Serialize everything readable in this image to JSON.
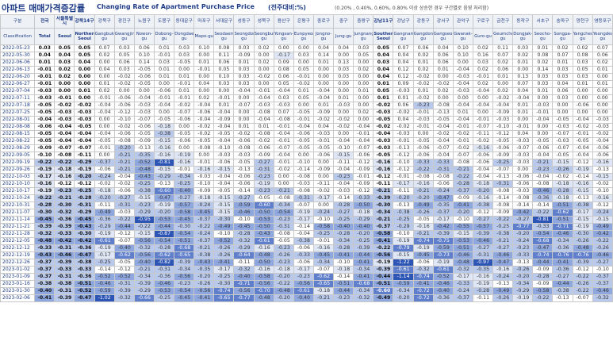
{
  "header": {
    "title_kr": "아파트 매매가격증감률",
    "title_en": "Changing Rate of Apartment Purchase Price",
    "unit": "(전주대비:%)",
    "legend_note": "(0.20% , 0.40%, 0.60%, 0.80% 이상 상승한 경우 구간별로 음영 처리함)"
  },
  "columns": [
    {
      "kr": "구분",
      "en": "Classification"
    },
    {
      "kr": "전국",
      "en": "Total"
    },
    {
      "kr": "서울특별시",
      "en": "Seoul"
    },
    {
      "kr": "강북14구",
      "en": "Northern Seoul"
    },
    {
      "kr": "강북구",
      "en": "Gangbuk-gu"
    },
    {
      "kr": "광진구",
      "en": "Gwangjin-gu"
    },
    {
      "kr": "노원구",
      "en": "Nowon-gu"
    },
    {
      "kr": "도봉구",
      "en": "Dobong-gu"
    },
    {
      "kr": "동대문구",
      "en": "Dongdaemun-gu"
    },
    {
      "kr": "마포구",
      "en": "Mapo-gu"
    },
    {
      "kr": "서대문구",
      "en": "Seodaemun-gu"
    },
    {
      "kr": "성동구",
      "en": "Seongdong-gu"
    },
    {
      "kr": "성북구",
      "en": "Seongbuk-gu"
    },
    {
      "kr": "용산구",
      "en": "Yongsan-gu"
    },
    {
      "kr": "은평구",
      "en": "Eunpyeong-gu"
    },
    {
      "kr": "종로구",
      "en": "Jongno-gu"
    },
    {
      "kr": "중구",
      "en": "Jung-gu"
    },
    {
      "kr": "중랑구",
      "en": "Jungnang-gu"
    },
    {
      "kr": "강남11구",
      "en": "Southern Seoul"
    },
    {
      "kr": "강남구",
      "en": "Gangnam-gu"
    },
    {
      "kr": "강동구",
      "en": "Gangdong-gu"
    },
    {
      "kr": "강서구",
      "en": "Gangseo-gu"
    },
    {
      "kr": "관악구",
      "en": "Gwanak-gu"
    },
    {
      "kr": "구로구",
      "en": "Guro-gu"
    },
    {
      "kr": "금천구",
      "en": "Geumcheon-gu"
    },
    {
      "kr": "동작구",
      "en": "Dongjak-gu"
    },
    {
      "kr": "서초구",
      "en": "Seocho-gu"
    },
    {
      "kr": "송파구",
      "en": "Songpa-gu"
    },
    {
      "kr": "양천구",
      "en": "Yangcheon-gu"
    },
    {
      "kr": "영등포구",
      "en": "Yeongdeungpo-gu"
    }
  ],
  "rows": [
    [
      "2022-05-23",
      "0.03",
      "0.05",
      "0.05",
      "0.07",
      "0.03",
      "0.06",
      "0.01",
      "0.03",
      "0.10",
      "0.08",
      "0.03",
      "0.02",
      "0.00",
      "0.00",
      "0.04",
      "0.04",
      "0.03",
      "0.05",
      "0.07",
      "0.06",
      "0.04",
      "0.10",
      "0.02",
      "0.11",
      "0.03",
      "0.01",
      "0.02",
      "0.02",
      "0.07"
    ],
    [
      "2022-05-30",
      "0.04",
      "0.04",
      "0.05",
      "0.02",
      "0.05",
      "0.10",
      "-0.01",
      "0.03",
      "0.00",
      "0.11",
      "-0.09",
      "0.00",
      "-0.17",
      "0.03",
      "0.14",
      "0.00",
      "0.05",
      "0.04",
      "0.04",
      "0.02",
      "0.06",
      "0.10",
      "0.16",
      "0.07",
      "0.02",
      "0.08",
      "0.07",
      "0.08",
      "0.06"
    ],
    [
      "2022-06-06",
      "0.01",
      "0.03",
      "0.04",
      "0.00",
      "0.06",
      "0.14",
      "0.03",
      "-0.05",
      "0.01",
      "0.06",
      "0.01",
      "0.02",
      "0.09",
      "0.00",
      "0.01",
      "0.13",
      "0.00",
      "0.03",
      "0.04",
      "0.01",
      "0.06",
      "0.00",
      "0.03",
      "0.02",
      "0.01",
      "0.02",
      "0.01",
      "0.03",
      "0.02"
    ],
    [
      "2022-06-13",
      "-0.01",
      "0.02",
      "0.00",
      "0.04",
      "0.03",
      "-0.05",
      "0.01",
      "0.00",
      "-0.01",
      "0.05",
      "0.03",
      "0.00",
      "0.08",
      "0.05",
      "0.00",
      "0.03",
      "0.02",
      "0.04",
      "0.12",
      "0.02",
      "0.01",
      "-0.04",
      "0.02",
      "0.06",
      "0.00",
      "0.14",
      "0.03",
      "0.05",
      "0.01"
    ],
    [
      "2022-06-20",
      "-0.01",
      "0.02",
      "0.00",
      "0.00",
      "-0.02",
      "-0.06",
      "0.01",
      "0.01",
      "0.00",
      "0.10",
      "0.03",
      "-0.02",
      "0.06",
      "-0.01",
      "0.00",
      "0.03",
      "0.00",
      "0.04",
      "0.12",
      "-0.02",
      "0.00",
      "-0.03",
      "-0.01",
      "0.01",
      "0.13",
      "0.03",
      "0.03",
      "0.03",
      "0.00"
    ],
    [
      "2022-06-27",
      "-0.01",
      "0.00",
      "0.00",
      "0.01",
      "-0.02",
      "-0.05",
      "0.00",
      "-0.01",
      "0.04",
      "0.03",
      "0.03",
      "0.00",
      "0.05",
      "-0.02",
      "0.00",
      "0.00",
      "0.00",
      "0.01",
      "0.09",
      "-0.02",
      "-0.02",
      "-0.04",
      "0.02",
      "0.00",
      "0.07",
      "0.03",
      "0.04",
      "0.01",
      "0.01"
    ],
    [
      "2022-07-04",
      "-0.03",
      "0.00",
      "0.01",
      "0.02",
      "0.00",
      "0.00",
      "-0.06",
      "0.01",
      "0.00",
      "0.00",
      "-0.04",
      "-0.01",
      "-0.04",
      "0.01",
      "-0.04",
      "0.00",
      "0.01",
      "0.05",
      "-0.03",
      "0.01",
      "0.02",
      "-0.03",
      "-0.04",
      "0.02",
      "0.04",
      "0.01",
      "0.06",
      "0.00",
      "0.00"
    ],
    [
      "2022-07-11",
      "-0.03",
      "-0.01",
      "0.00",
      "-0.01",
      "-0.06",
      "-0.04",
      "-0.01",
      "-0.01",
      "0.02",
      "-0.01",
      "0.00",
      "-0.04",
      "0.03",
      "0.05",
      "-0.04",
      "0.01",
      "0.00",
      "0.01",
      "0.01",
      "-0.02",
      "0.00",
      "0.00",
      "0.00",
      "-0.02",
      "-0.04",
      "0.00",
      "0.03",
      "0.00",
      "0.00"
    ],
    [
      "2022-07-18",
      "-0.05",
      "-0.02",
      "-0.02",
      "-0.04",
      "-0.06",
      "-0.03",
      "-0.04",
      "-0.02",
      "-0.04",
      "0.01",
      "-0.07",
      "-0.03",
      "-0.03",
      "0.00",
      "0.01",
      "-0.03",
      "0.00",
      "-0.02",
      "0.06",
      "-0.23",
      "-0.08",
      "-0.04",
      "-0.04",
      "-0.04",
      "0.01",
      "-0.03",
      "0.00",
      "-0.06",
      "0.00"
    ],
    [
      "2022-07-25",
      "-0.05",
      "-0.03",
      "-0.03",
      "-0.04",
      "-0.12",
      "-0.03",
      "0.00",
      "-0.07",
      "-0.06",
      "-0.04",
      "0.00",
      "-0.08",
      "0.07",
      "-0.05",
      "-0.09",
      "0.00",
      "0.02",
      "-0.03",
      "-0.02",
      "-0.01",
      "-0.13",
      "0.01",
      "0.00",
      "-0.09",
      "0.01",
      "-0.01",
      "0.00",
      "0.00",
      "0.00"
    ],
    [
      "2022-08-01",
      "-0.04",
      "-0.03",
      "-0.03",
      "0.00",
      "-0.10",
      "-0.07",
      "-0.05",
      "-0.06",
      "-0.04",
      "-0.09",
      "0.00",
      "-0.04",
      "-0.08",
      "-0.01",
      "-0.02",
      "-0.02",
      "0.00",
      "-0.05",
      "0.04",
      "-0.03",
      "-0.05",
      "-0.04",
      "-0.01",
      "-0.03",
      "0.00",
      "-0.04",
      "-0.05",
      "-0.04",
      "-0.03"
    ],
    [
      "2022-08-08",
      "-0.06",
      "-0.04",
      "-0.05",
      "0.00",
      "-0.02",
      "-0.06",
      "-0.18",
      "0.00",
      "-0.02",
      "-0.04",
      "0.01",
      "0.01",
      "-0.01",
      "-0.04",
      "0.04",
      "-0.02",
      "-0.04",
      "-0.02",
      "-0.02",
      "-0.01",
      "-0.04",
      "-0.01",
      "-0.07",
      "-0.10",
      "-0.01",
      "0.00",
      "-0.03",
      "-0.02",
      "-0.03"
    ],
    [
      "2022-08-15",
      "-0.05",
      "-0.04",
      "-0.04",
      "-0.04",
      "-0.06",
      "-0.05",
      "-0.38",
      "-0.05",
      "-0.02",
      "-0.05",
      "-0.02",
      "-0.08",
      "-0.04",
      "-0.06",
      "-0.03",
      "0.00",
      "-0.01",
      "-0.04",
      "-0.03",
      "0.00",
      "-0.02",
      "-0.02",
      "-0.11",
      "-0.12",
      "0.04",
      "0.00",
      "-0.07",
      "-0.01",
      "-0.02"
    ],
    [
      "2022-08-22",
      "-0.05",
      "-0.04",
      "-0.04",
      "-0.05",
      "-0.08",
      "-0.09",
      "-0.15",
      "-0.06",
      "-0.05",
      "-0.04",
      "-0.06",
      "-0.02",
      "-0.01",
      "-0.05",
      "-0.01",
      "-0.04",
      "-0.04",
      "-0.03",
      "-0.01",
      "-0.05",
      "-0.04",
      "-0.01",
      "-0.02",
      "-0.05",
      "-0.03",
      "-0.05",
      "-0.03",
      "-0.05",
      "-0.04"
    ],
    [
      "2022-08-29",
      "-0.09",
      "-0.07",
      "-0.07",
      "-0.01",
      "-0.20",
      "-0.13",
      "-0.16",
      "0.00",
      "-0.08",
      "-0.10",
      "-0.08",
      "-0.06",
      "-0.07",
      "-0.05",
      "-0.05",
      "-0.10",
      "-0.07",
      "-0.03",
      "-0.13",
      "-0.06",
      "-0.07",
      "-0.02",
      "-0.16",
      "-0.06",
      "-0.07",
      "-0.06",
      "-0.07",
      "-0.04",
      "-0.06"
    ],
    [
      "2022-09-05",
      "-0.10",
      "-0.08",
      "-0.11",
      "0.00",
      "-0.21",
      "-0.35",
      "-0.16",
      "-0.19",
      "0.00",
      "-0.03",
      "-0.03",
      "-0.09",
      "-0.04",
      "0.00",
      "-0.06",
      "-0.15",
      "-0.06",
      "-0.05",
      "-0.12",
      "-0.06",
      "-0.04",
      "-0.07",
      "-0.06",
      "-0.09",
      "-0.03",
      "-0.04",
      "-0.05",
      "-0.04",
      "-0.06"
    ],
    [
      "2022-09-19",
      "-0.22",
      "-0.22",
      "-0.29",
      "-0.37",
      "-0.21",
      "-0.52",
      "-0.81",
      "-0.16",
      "-0.01",
      "-0.06",
      "-0.05",
      "-0.27",
      "-0.01",
      "-0.10",
      "0.00",
      "-0.11",
      "-0.12",
      "-0.16",
      "-0.10",
      "-0.33",
      "-0.33",
      "-0.08",
      "-0.06",
      "-0.25",
      "-0.03",
      "-0.21",
      "-0.15",
      "-0.12",
      "-0.16"
    ],
    [
      "2022-09-26",
      "-0.19",
      "-0.18",
      "-0.19",
      "-0.06",
      "-0.21",
      "-0.48",
      "-0.15",
      "-0.01",
      "-0.16",
      "-0.15",
      "-0.13",
      "-0.31",
      "-0.02",
      "-0.14",
      "-0.09",
      "-0.04",
      "-0.09",
      "-0.16",
      "-0.12",
      "-0.22",
      "-0.31",
      "-0.21",
      "-0.04",
      "-0.07",
      "0.00",
      "-0.23",
      "-0.26",
      "-0.19",
      "-0.13"
    ],
    [
      "2022-10-03",
      "-0.17",
      "-0.16",
      "-0.20",
      "-0.24",
      "-0.04",
      "-0.43",
      "-0.29",
      "-0.34",
      "-0.03",
      "-0.04",
      "-0.06",
      "-0.23",
      "0.00",
      "-0.08",
      "0.00",
      "-0.23",
      "-0.01",
      "-0.12",
      "-0.01",
      "-0.08",
      "-0.08",
      "-0.22",
      "-0.04",
      "-0.13",
      "-0.06",
      "-0.04",
      "-0.02",
      "-0.14",
      "-0.15"
    ],
    [
      "2022-10-10",
      "-0.16",
      "-0.12",
      "-0.12",
      "-0.02",
      "-0.02",
      "-0.25",
      "-0.13",
      "-0.25",
      "-0.10",
      "-0.04",
      "-0.06",
      "-0.19",
      "0.00",
      "-0.03",
      "-0.11",
      "-0.04",
      "-0.09",
      "-0.11",
      "-0.17",
      "-0.16",
      "-0.06",
      "-0.28",
      "-0.18",
      "-0.31",
      "-0.06",
      "-0.08",
      "-0.18",
      "-0.16",
      "-0.02"
    ],
    [
      "2022-10-17",
      "-0.19",
      "-0.23",
      "-0.25",
      "-0.18",
      "-0.06",
      "-0.38",
      "-0.60",
      "-0.40",
      "-0.09",
      "-0.05",
      "-0.14",
      "-0.23",
      "-0.21",
      "-0.08",
      "-0.02",
      "-0.03",
      "-0.12",
      "-0.21",
      "-0.11",
      "-0.21",
      "-0.24",
      "-0.37",
      "-0.20",
      "-0.08",
      "-0.03",
      "-0.46",
      "-0.28",
      "-0.15",
      "-0.10"
    ],
    [
      "2022-10-24",
      "-0.22",
      "-0.21",
      "-0.28",
      "-0.20",
      "-0.27",
      "-0.15",
      "-0.47",
      "-0.27",
      "-0.18",
      "-0.15",
      "-0.27",
      "-0.05",
      "-0.08",
      "-0.31",
      "-0.17",
      "-0.14",
      "-0.33",
      "-0.39",
      "-0.20",
      "-0.20",
      "-0.47",
      "-0.09",
      "-0.16",
      "-0.14",
      "-0.08",
      "-0.36",
      "-0.18",
      "-0.13",
      "-0.16"
    ],
    [
      "2022-10-31",
      "-0.28",
      "-0.30",
      "-0.31",
      "-0.11",
      "-0.31",
      "-0.23",
      "-0.19",
      "-0.57",
      "-0.24",
      "-0.15",
      "-0.59",
      "-0.60",
      "-0.34",
      "-0.07",
      "0.00",
      "-0.28",
      "-0.50",
      "-0.30",
      "-0.13",
      "-0.49",
      "-0.35",
      "-0.41",
      "-0.38",
      "-0.08",
      "-0.14",
      "-0.14",
      "-0.51",
      "-0.38",
      "-0.12"
    ],
    [
      "2022-11-07",
      "-0.30",
      "-0.32",
      "-0.29",
      "-0.49",
      "-0.03",
      "-0.29",
      "-0.20",
      "-0.58",
      "-0.45",
      "-0.15",
      "-0.46",
      "-0.50",
      "-0.54",
      "-0.19",
      "-0.24",
      "-0.27",
      "-0.18",
      "-0.34",
      "-0.38",
      "-0.26",
      "-0.37",
      "-0.20",
      "-0.12",
      "-0.09",
      "-0.42",
      "-0.22",
      "-0.62",
      "-0.17",
      "-0.24"
    ],
    [
      "2022-11-14",
      "-0.45",
      "-0.36",
      "-0.45",
      "-0.36",
      "-0.22",
      "-0.95",
      "-0.53",
      "-0.45",
      "-0.37",
      "-0.30",
      "-0.10",
      "-0.53",
      "-0.23",
      "-0.17",
      "-0.10",
      "-0.25",
      "-0.29",
      "-0.21",
      "-0.25",
      "-0.05",
      "-0.17",
      "-0.10",
      "-0.27",
      "-0.22",
      "-0.27",
      "-0.81",
      "-0.51",
      "-0.15",
      "-0.15"
    ],
    [
      "2022-11-21",
      "-0.39",
      "-0.39",
      "-0.43",
      "-0.29",
      "-0.44",
      "-0.22",
      "-0.44",
      "-0.30",
      "-0.22",
      "-0.49",
      "-0.45",
      "-0.50",
      "-0.31",
      "-0.14",
      "-0.58",
      "-0.40",
      "-0.40",
      "-0.37",
      "-0.29",
      "-0.16",
      "-0.42",
      "-0.55",
      "-0.57",
      "-0.25",
      "-0.77",
      "-0.33",
      "-0.71",
      "-0.19",
      "-0.49"
    ],
    [
      "2022-11-28",
      "-0.32",
      "-0.33",
      "-0.30",
      "-0.19",
      "-0.12",
      "-0.15",
      "-0.87",
      "-0.54",
      "-0.24",
      "-0.10",
      "-0.28",
      "-0.43",
      "-0.08",
      "-0.04",
      "-0.25",
      "-0.28",
      "-0.20",
      "-0.58",
      "-0.10",
      "-0.21",
      "-0.39",
      "-0.15",
      "-0.39",
      "-0.38",
      "-0.20",
      "-0.54",
      "-0.46",
      "-0.30",
      "-0.42"
    ],
    [
      "2022-12-05",
      "-0.48",
      "-0.42",
      "-0.42",
      "-0.61",
      "-0.07",
      "-0.56",
      "-0.54",
      "-0.51",
      "-0.37",
      "-0.52",
      "-0.32",
      "-0.61",
      "-0.05",
      "-0.38",
      "-0.01",
      "-0.34",
      "-0.25",
      "-0.41",
      "-0.19",
      "-0.74",
      "-0.75",
      "-0.53",
      "-0.46",
      "-0.21",
      "-0.24",
      "-0.68",
      "-0.34",
      "-0.26",
      "-0.22"
    ],
    [
      "2022-12-12",
      "-0.33",
      "-0.31",
      "-0.36",
      "-0.19",
      "-0.40",
      "-0.32",
      "-0.28",
      "-0.68",
      "-0.21",
      "-0.26",
      "-0.29",
      "-0.16",
      "-0.23",
      "-0.06",
      "-0.16",
      "-0.28",
      "-0.39",
      "-0.22",
      "-0.79",
      "-0.19",
      "-0.59",
      "-0.51",
      "-0.27",
      "-0.27",
      "-0.23",
      "-0.47",
      "-0.36",
      "-0.48",
      "-0.26"
    ],
    [
      "2022-12-19",
      "-0.43",
      "-0.46",
      "-0.47",
      "-0.17",
      "-0.62",
      "-0.56",
      "-0.62",
      "-0.65",
      "-0.38",
      "-0.26",
      "-0.64",
      "-0.48",
      "-0.26",
      "-0.33",
      "-0.45",
      "-0.41",
      "-0.44",
      "-0.56",
      "-0.15",
      "-0.45",
      "-0.73",
      "-0.46",
      "-0.31",
      "-0.46",
      "-0.33",
      "-0.74",
      "-0.76",
      "-0.76",
      "-0.46"
    ],
    [
      "2022-12-26",
      "-0.37",
      "-0.39",
      "-0.38",
      "-0.25",
      "-0.05",
      "-0.40",
      "-0.82",
      "-0.39",
      "-0.43",
      "-0.41",
      "-0.11",
      "-0.50",
      "-0.23",
      "-0.06",
      "-0.34",
      "-0.10",
      "-0.41",
      "-0.19",
      "-1.22",
      "-0.06",
      "-0.19",
      "-0.48",
      "-0.97",
      "-0.47",
      "-0.13",
      "-0.44",
      "-0.41",
      "-0.39",
      "-0.27"
    ],
    [
      "2023-01-02",
      "-0.37",
      "-0.33",
      "-0.33",
      "-0.14",
      "-0.12",
      "-0.21",
      "-0.31",
      "-0.34",
      "-0.35",
      "-0.17",
      "-0.32",
      "-0.16",
      "-0.18",
      "-0.17",
      "-0.07",
      "-0.18",
      "-0.34",
      "-0.39",
      "-0.61",
      "-0.32",
      "-0.61",
      "-0.32",
      "-0.35",
      "-0.16",
      "-0.26",
      "-0.09",
      "-0.36",
      "-0.12",
      "-0.10"
    ],
    [
      "2023-01-09",
      "-0.37",
      "-0.31",
      "-0.36",
      "-0.52",
      "-0.52",
      "-0.34",
      "-0.36",
      "-0.56",
      "-0.20",
      "-0.25",
      "-0.40",
      "-0.58",
      "-0.20",
      "-0.23",
      "-0.62",
      "-0.14",
      "-0.41",
      "-0.44",
      "-1.14",
      "-0.74",
      "-0.52",
      "-0.17",
      "-0.16",
      "-0.24",
      "-0.20",
      "-0.28",
      "-0.27",
      "-0.22",
      "-0.37"
    ],
    [
      "2023-01-16",
      "-0.38",
      "-0.38",
      "-0.51",
      "-0.46",
      "-0.31",
      "-0.39",
      "-0.46",
      "-0.23",
      "-0.26",
      "-0.30",
      "-0.71",
      "-0.56",
      "-0.22",
      "-0.56",
      "-0.65",
      "-0.51",
      "-0.68",
      "-0.51",
      "-0.59",
      "-0.41",
      "-0.46",
      "-0.33",
      "-0.19",
      "-0.13",
      "-0.34",
      "-0.09",
      "-0.44",
      "-0.26",
      "-0.37"
    ],
    [
      "2023-01-30",
      "-0.40",
      "-0.31",
      "-0.52",
      "-0.59",
      "-0.39",
      "-0.29",
      "-0.53",
      "-0.54",
      "-0.56",
      "-0.74",
      "-0.56",
      "-0.70",
      "-0.48",
      "-0.61",
      "-0.18",
      "-0.44",
      "-0.34",
      "-0.60",
      "-0.34",
      "-0.72",
      "-0.40",
      "-0.24",
      "-0.28",
      "-0.49",
      "-0.29",
      "-0.58",
      "-0.38",
      "-0.22",
      "-0.46"
    ],
    [
      "2023-02-06",
      "-0.41",
      "-0.39",
      "-0.47",
      "-1.02",
      "-0.32",
      "-0.66",
      "-0.25",
      "-0.45",
      "-0.41",
      "-0.65",
      "-0.77",
      "-0.48",
      "-0.20",
      "-0.40",
      "-0.21",
      "-0.23",
      "-0.32",
      "-0.49",
      "-0.20",
      "-0.72",
      "-0.36",
      "-0.37",
      "-0.11",
      "-0.26",
      "-0.19",
      "-0.22",
      "-0.13",
      "-0.07",
      "-0.32"
    ]
  ]
}
